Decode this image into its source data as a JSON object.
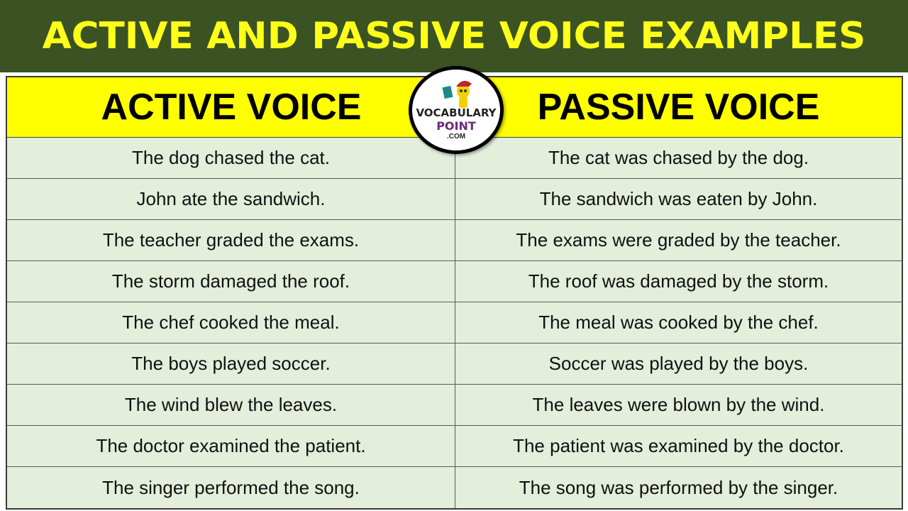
{
  "title": "ACTIVE AND PASSIVE VOICE EXAMPLES",
  "headers": {
    "active": "ACTIVE VOICE",
    "passive": "PASSIVE VOICE"
  },
  "logo": {
    "line1": "VOCABULARY",
    "line2": "POINT",
    "line3": ".COM"
  },
  "colors": {
    "banner": "#3b5323",
    "title": "#ffff1a",
    "header": "#ffff00",
    "rows": "#e3eedb"
  },
  "rows": [
    {
      "active": "The dog chased the cat.",
      "passive": "The cat was chased by the dog."
    },
    {
      "active": "John ate the sandwich.",
      "passive": "The sandwich was eaten by John."
    },
    {
      "active": "The teacher graded the exams.",
      "passive": "The exams were graded by the teacher."
    },
    {
      "active": "The storm damaged the roof.",
      "passive": "The roof was damaged by the storm."
    },
    {
      "active": "The chef cooked the meal.",
      "passive": "The meal was cooked by the chef."
    },
    {
      "active": "The boys played soccer.",
      "passive": "Soccer was played by the boys."
    },
    {
      "active": "The wind blew the leaves.",
      "passive": "The leaves were blown by the wind."
    },
    {
      "active": "The doctor examined the patient.",
      "passive": "The patient was examined by the doctor."
    },
    {
      "active": "The singer performed the song.",
      "passive": "The song was performed by the singer."
    }
  ]
}
